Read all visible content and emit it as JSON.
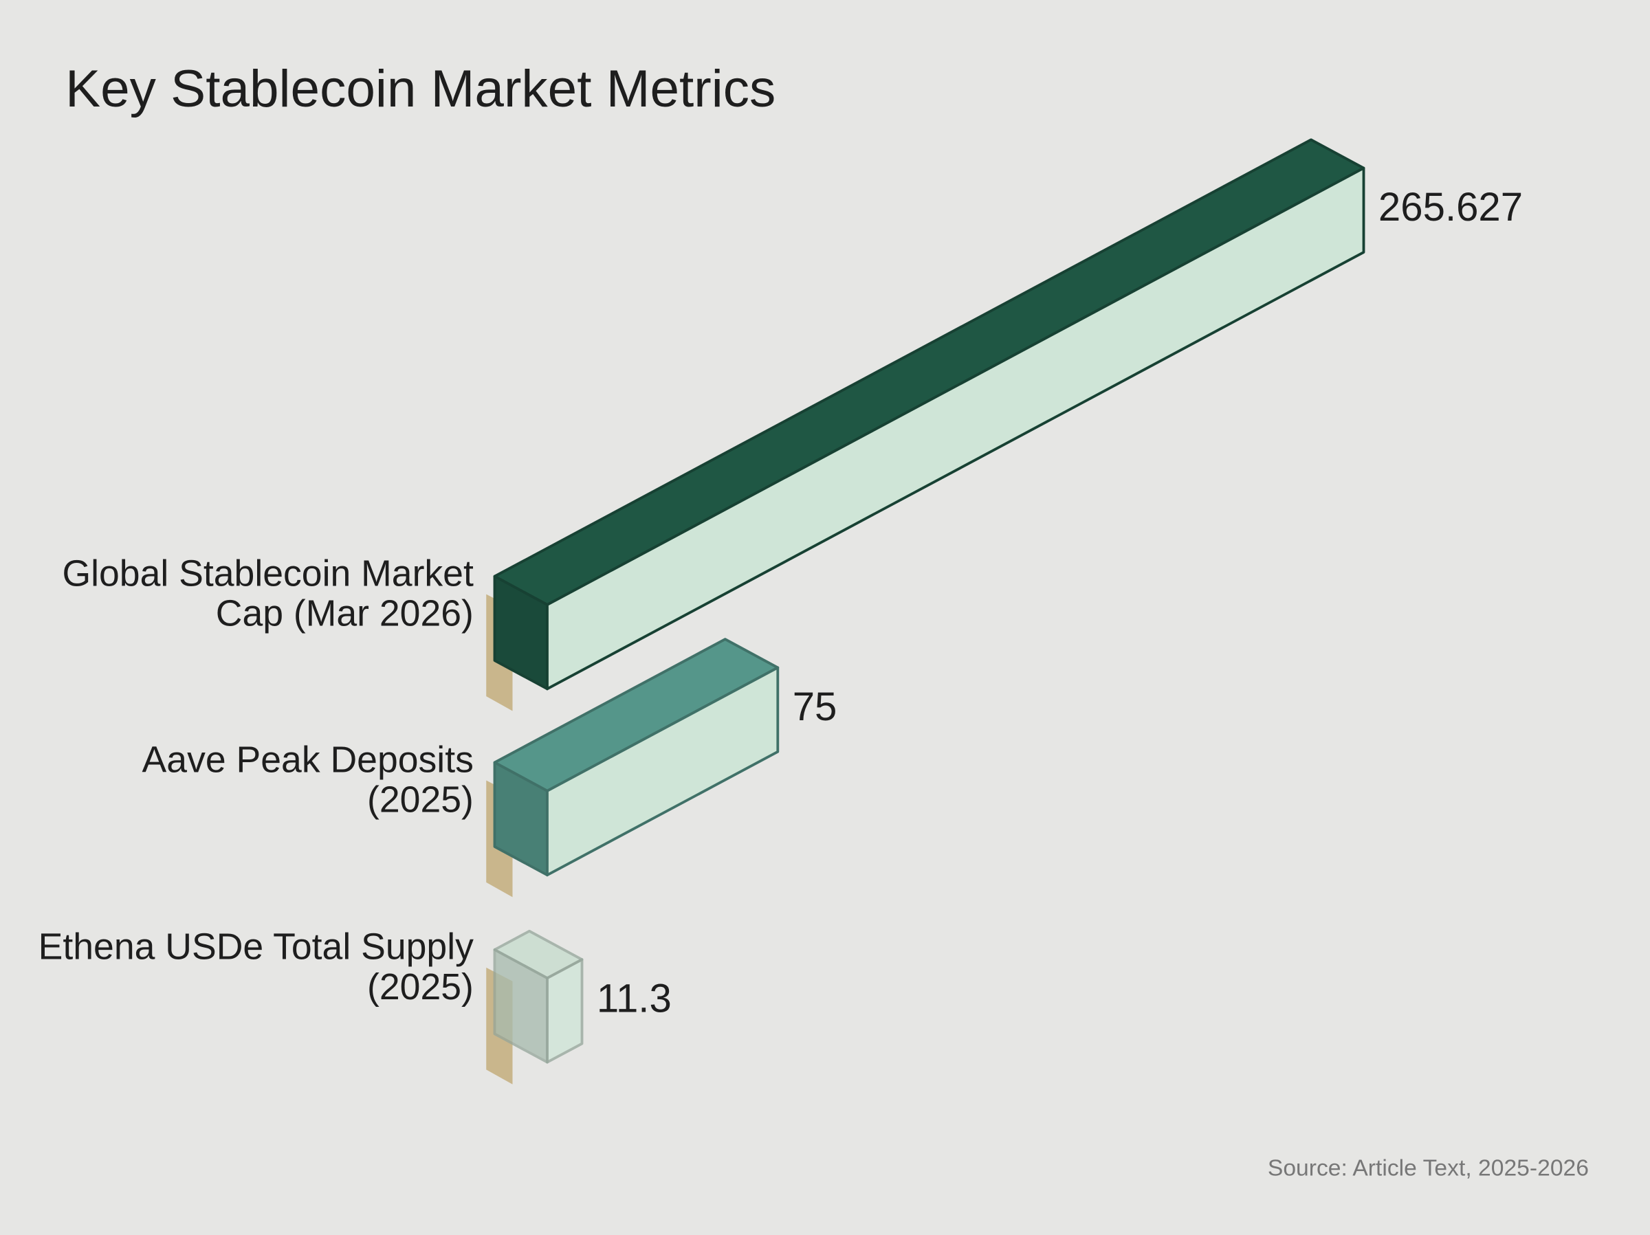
{
  "chart_data": {
    "type": "bar",
    "title": "Key Stablecoin Market Metrics",
    "categories": [
      "Global Stablecoin Market Cap (Mar 2026)",
      "Aave Peak Deposits (2025)",
      "Ethena USDe Total Supply (2025)"
    ],
    "values": [
      265.627,
      75,
      11.3
    ],
    "colors": [
      "#1f5744",
      "#55968a",
      "#c5dccd"
    ],
    "source": "Source: Article Text, 2025-2026"
  }
}
